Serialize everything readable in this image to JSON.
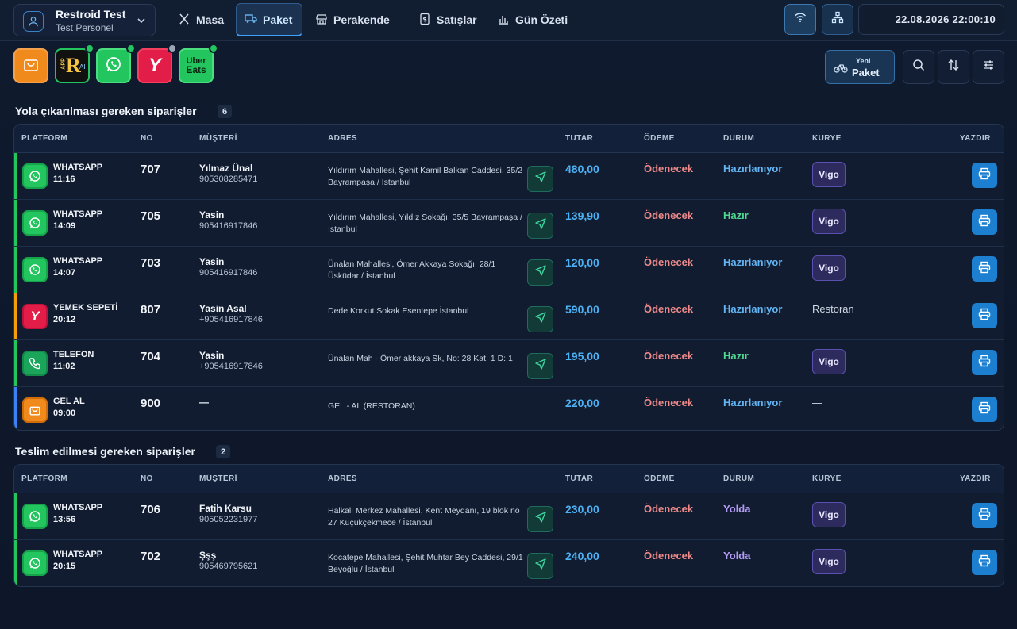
{
  "user": {
    "name": "Restroid Test",
    "role": "Test Personel"
  },
  "nav": {
    "masa": "Masa",
    "paket": "Paket",
    "perakende": "Perakende",
    "satislar": "Satışlar",
    "gun_ozeti": "Gün Özeti"
  },
  "clock": "22.08.2026 22:00:10",
  "platforms": [
    "shopping-bag",
    "app-restroid",
    "whatsapp",
    "yemeksepeti",
    "uber-eats"
  ],
  "platform_labels": {
    "app_small": "APP",
    "app_r": "R",
    "app_ai": "AI",
    "ys_letter": "Y",
    "uber_l1": "Uber",
    "uber_l2": "Eats"
  },
  "new_package": {
    "line1": "Yeni",
    "line2": "Paket"
  },
  "headers": {
    "platform": "PLATFORM",
    "no": "NO",
    "customer": "MÜŞTERİ",
    "address": "ADRES",
    "amount": "TUTAR",
    "payment": "ÖDEME",
    "status": "DURUM",
    "courier": "KURYE",
    "print": "YAZDIR"
  },
  "section1": {
    "title": "Yola çıkarılması gereken siparişler",
    "count": "6",
    "rows": [
      {
        "platform": "WHATSAPP",
        "time": "11:16",
        "no": "707",
        "name": "Yılmaz Ünal",
        "phone": "905308285471",
        "address": "Yıldırım Mahallesi, Şehit Kamil Balkan Caddesi, 35/2 Bayrampaşa / İstanbul",
        "amount": "480,00",
        "payment": "Ödenecek",
        "status": "Hazırlanıyor",
        "courier": "Vigo"
      },
      {
        "platform": "WHATSAPP",
        "time": "14:09",
        "no": "705",
        "name": "Yasin",
        "phone": "905416917846",
        "address": "Yıldırım Mahallesi, Yıldız Sokağı, 35/5 Bayrampaşa / İstanbul",
        "amount": "139,90",
        "payment": "Ödenecek",
        "status": "Hazır",
        "courier": "Vigo"
      },
      {
        "platform": "WHATSAPP",
        "time": "14:07",
        "no": "703",
        "name": "Yasin",
        "phone": "905416917846",
        "address": "Ünalan Mahallesi, Ömer Akkaya Sokağı, 28/1 Üsküdar / İstanbul",
        "amount": "120,00",
        "payment": "Ödenecek",
        "status": "Hazırlanıyor",
        "courier": "Vigo"
      },
      {
        "platform": "YEMEK SEPETİ",
        "time": "20:12",
        "no": "807",
        "name": "Yasin Asal",
        "phone": "+905416917846",
        "address": "Dede Korkut Sokak Esentepe İstanbul",
        "amount": "590,00",
        "payment": "Ödenecek",
        "status": "Hazırlanıyor",
        "courier": "Restoran"
      },
      {
        "platform": "TELEFON",
        "time": "11:02",
        "no": "704",
        "name": "Yasin",
        "phone": "+905416917846",
        "address": "Ünalan Mah · Ömer akkaya Sk, No: 28 Kat: 1 D: 1",
        "amount": "195,00",
        "payment": "Ödenecek",
        "status": "Hazır",
        "courier": "Vigo"
      },
      {
        "platform": "GEL AL",
        "time": "09:00",
        "no": "900",
        "name": "—",
        "phone": "",
        "address": "GEL - AL (RESTORAN)",
        "amount": "220,00",
        "payment": "Ödenecek",
        "status": "Hazırlanıyor",
        "courier": "—"
      }
    ]
  },
  "section2": {
    "title": "Teslim edilmesi gereken siparişler",
    "count": "2",
    "rows": [
      {
        "platform": "WHATSAPP",
        "time": "13:56",
        "no": "706",
        "name": "Fatih Karsu",
        "phone": "905052231977",
        "address": "Halkalı Merkez Mahallesi, Kent Meydanı, 19 blok no 27 Küçükçekmece / İstanbul",
        "amount": "230,00",
        "payment": "Ödenecek",
        "status": "Yolda",
        "courier": "Vigo"
      },
      {
        "platform": "WHATSAPP",
        "time": "20:15",
        "no": "702",
        "name": "Şşş",
        "phone": "905469795621",
        "address": "Kocatepe Mahallesi, Şehit Muhtar Bey Caddesi, 29/1 Beyoğlu / İstanbul",
        "amount": "240,00",
        "payment": "Ödenecek",
        "status": "Yolda",
        "courier": "Vigo"
      }
    ]
  },
  "colors": {
    "accent": "#3ea3ff",
    "whatsapp": "#22c55e",
    "yemeksepeti": "#e11d48",
    "getir_orange": "#f08a1c",
    "amount": "#4db2f5",
    "payment": "#f08a8a"
  }
}
